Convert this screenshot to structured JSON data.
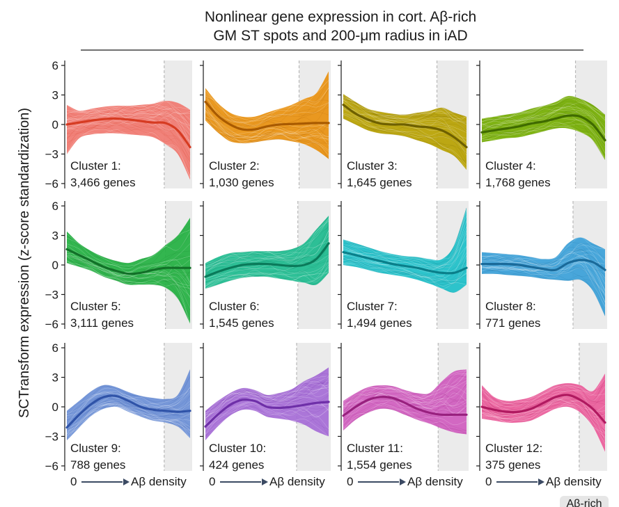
{
  "figure": {
    "title_line1": "Nonlinear gene expression in cort. Aβ-rich",
    "title_line2": "GM ST spots and 200-μm radius in iAD",
    "y_axis_label": "SCTransform expression (z-score standardization)",
    "x_axis_start": "0",
    "x_axis_end": "Aβ density",
    "shaded_region_label": "Aβ-rich"
  },
  "chart_data": {
    "type": "line",
    "x_label": "0 → Aβ density",
    "y_label": "SCTransform expression (z-score standardization)",
    "ylim": [
      -6.5,
      6.5
    ],
    "y_ticks": [
      6,
      3,
      0,
      -3,
      -6
    ],
    "y_tick_labels": [
      "6",
      "3",
      "0",
      "−3",
      "−6"
    ],
    "x": [
      0,
      0.1,
      0.2,
      0.3,
      0.4,
      0.5,
      0.6,
      0.7,
      0.8,
      0.9,
      1.0
    ],
    "panels": [
      {
        "name": "Cluster 1:",
        "genes": "3,466 genes",
        "color": "#f07870",
        "line_color": "#d63b22",
        "shade_start": 0.79,
        "mean": [
          0.0,
          0.2,
          0.4,
          0.55,
          0.6,
          0.5,
          0.35,
          0.2,
          0.15,
          -0.6,
          -2.3
        ],
        "upper": [
          2.0,
          1.4,
          1.6,
          1.8,
          1.9,
          1.9,
          2.0,
          2.1,
          2.4,
          2.2,
          1.5
        ],
        "lower": [
          -3.0,
          -1.4,
          -1.0,
          -0.9,
          -0.9,
          -1.0,
          -1.1,
          -1.3,
          -2.0,
          -3.0,
          -5.6
        ]
      },
      {
        "name": "Cluster 2:",
        "genes": "1,030 genes",
        "color": "#e8900e",
        "line_color": "#a85a00",
        "shade_start": 0.76,
        "mean": [
          2.3,
          0.9,
          0.0,
          -0.5,
          -0.5,
          -0.2,
          0.0,
          0.05,
          0.1,
          0.15,
          0.15
        ],
        "upper": [
          3.7,
          2.2,
          1.2,
          0.8,
          0.8,
          1.2,
          1.6,
          2.0,
          2.6,
          3.2,
          5.4
        ],
        "lower": [
          0.4,
          -0.8,
          -1.7,
          -1.9,
          -1.8,
          -1.6,
          -1.5,
          -1.7,
          -2.0,
          -2.6,
          -3.5
        ]
      },
      {
        "name": "Cluster 3:",
        "genes": "1,645 genes",
        "color": "#b7a100",
        "line_color": "#6e6000",
        "shade_start": 0.76,
        "mean": [
          2.0,
          1.1,
          0.5,
          0.1,
          0.0,
          0.0,
          -0.2,
          -0.3,
          -0.6,
          -1.3,
          -2.3
        ],
        "upper": [
          3.1,
          2.3,
          1.6,
          1.3,
          1.1,
          1.0,
          1.2,
          1.4,
          1.7,
          1.2,
          0.8
        ],
        "lower": [
          0.6,
          0.0,
          -0.6,
          -0.9,
          -1.0,
          -1.2,
          -1.6,
          -2.0,
          -2.6,
          -3.2,
          -4.6
        ]
      },
      {
        "name": "Cluster 4:",
        "genes": "1,768 genes",
        "color": "#74ad00",
        "line_color": "#3f6a00",
        "shade_start": 0.76,
        "mean": [
          -0.8,
          -0.6,
          -0.4,
          -0.2,
          0.1,
          0.3,
          0.6,
          0.9,
          0.8,
          0.0,
          -1.6
        ],
        "upper": [
          0.6,
          0.8,
          1.0,
          1.2,
          1.6,
          1.9,
          2.3,
          2.9,
          2.6,
          2.0,
          1.0
        ],
        "lower": [
          -1.8,
          -1.6,
          -1.4,
          -1.3,
          -1.0,
          -0.7,
          -0.4,
          -0.4,
          -0.8,
          -1.6,
          -3.6
        ]
      },
      {
        "name": "Cluster 5:",
        "genes": "3,111 genes",
        "color": "#22b040",
        "line_color": "#127028",
        "shade_start": 0.8,
        "mean": [
          1.6,
          1.0,
          0.4,
          -0.2,
          -0.6,
          -0.9,
          -0.8,
          -0.5,
          -0.3,
          -0.3,
          -0.3
        ],
        "upper": [
          3.4,
          2.2,
          1.4,
          0.8,
          0.4,
          0.2,
          0.6,
          1.0,
          2.0,
          3.0,
          4.8
        ],
        "lower": [
          0.2,
          -0.2,
          -0.6,
          -1.2,
          -1.6,
          -2.0,
          -2.0,
          -2.0,
          -2.3,
          -3.4,
          -6.0
        ]
      },
      {
        "name": "Cluster 6:",
        "genes": "1,545 genes",
        "color": "#1cbb8e",
        "line_color": "#0a7a5a",
        "shade_start": 0.75,
        "mean": [
          -1.2,
          -0.7,
          -0.3,
          0.0,
          0.1,
          0.1,
          0.0,
          -0.1,
          0.0,
          0.6,
          2.2
        ],
        "upper": [
          0.2,
          0.8,
          1.2,
          1.3,
          1.4,
          1.4,
          1.4,
          1.6,
          2.2,
          3.6,
          5.0
        ],
        "lower": [
          -2.4,
          -2.0,
          -1.6,
          -1.3,
          -1.2,
          -1.2,
          -1.4,
          -1.6,
          -1.8,
          -2.0,
          -0.8
        ]
      },
      {
        "name": "Cluster 7:",
        "genes": "1,494 genes",
        "color": "#1cbfc8",
        "line_color": "#0a7f8a",
        "shade_start": 0.76,
        "mean": [
          1.3,
          1.0,
          0.7,
          0.4,
          0.1,
          -0.1,
          -0.3,
          -0.6,
          -0.8,
          -0.8,
          -0.3
        ],
        "upper": [
          2.6,
          2.2,
          1.8,
          1.4,
          1.1,
          0.9,
          0.8,
          0.6,
          0.6,
          2.0,
          5.8
        ],
        "lower": [
          0.0,
          -0.2,
          -0.5,
          -0.8,
          -1.0,
          -1.2,
          -1.5,
          -1.9,
          -2.4,
          -2.8,
          -2.0
        ]
      },
      {
        "name": "Cluster 8:",
        "genes": "771 genes",
        "color": "#3aa0d8",
        "line_color": "#1a6a9a",
        "shade_start": 0.74,
        "mean": [
          0.1,
          0.1,
          0.1,
          0.0,
          -0.2,
          -0.4,
          -0.5,
          0.2,
          0.5,
          0.3,
          -0.5
        ],
        "upper": [
          1.3,
          1.2,
          1.1,
          1.0,
          0.8,
          0.6,
          0.8,
          2.2,
          2.8,
          2.2,
          1.6
        ],
        "lower": [
          -0.9,
          -0.9,
          -1.0,
          -1.1,
          -1.2,
          -1.4,
          -1.5,
          -1.6,
          -1.5,
          -2.6,
          -5.2
        ]
      },
      {
        "name": "Cluster 9:",
        "genes": "788 genes",
        "color": "#6b8fd6",
        "line_color": "#2f53a8",
        "shade_start": 0.79,
        "mean": [
          -2.1,
          -0.8,
          0.3,
          1.0,
          1.1,
          0.6,
          0.0,
          -0.3,
          -0.4,
          -0.5,
          -0.4
        ],
        "upper": [
          -0.4,
          0.6,
          1.6,
          2.2,
          2.0,
          1.5,
          1.1,
          0.9,
          0.8,
          1.2,
          3.8
        ],
        "lower": [
          -3.4,
          -2.1,
          -0.9,
          -0.2,
          0.0,
          -0.5,
          -1.0,
          -1.4,
          -1.6,
          -2.0,
          -3.2
        ]
      },
      {
        "name": "Cluster 10:",
        "genes": "424 genes",
        "color": "#a56bd6",
        "line_color": "#6e2fa8",
        "shade_start": 0.74,
        "mean": [
          -2.0,
          -0.8,
          0.2,
          0.7,
          0.6,
          0.0,
          -0.1,
          0.0,
          0.2,
          0.4,
          0.5
        ],
        "upper": [
          -0.4,
          0.6,
          1.4,
          1.9,
          1.7,
          1.2,
          1.4,
          1.8,
          2.6,
          3.2,
          4.0
        ],
        "lower": [
          -3.4,
          -2.0,
          -0.9,
          -0.3,
          -0.4,
          -1.0,
          -1.2,
          -1.4,
          -1.8,
          -2.5,
          -3.0
        ]
      },
      {
        "name": "Cluster 11:",
        "genes": "1,554 genes",
        "color": "#cf5cbe",
        "line_color": "#98207e",
        "shade_start": 0.77,
        "mean": [
          -0.9,
          0.0,
          0.7,
          1.0,
          0.9,
          0.4,
          -0.2,
          -0.6,
          -0.8,
          -0.8,
          -0.8
        ],
        "upper": [
          0.6,
          1.4,
          2.0,
          2.2,
          2.1,
          1.7,
          1.4,
          1.4,
          2.6,
          3.6,
          3.8
        ],
        "lower": [
          -2.4,
          -1.3,
          -0.6,
          -0.2,
          -0.3,
          -0.8,
          -1.3,
          -1.7,
          -2.2,
          -2.6,
          -2.8
        ]
      },
      {
        "name": "Cluster 12:",
        "genes": "375 genes",
        "color": "#ea5c9a",
        "line_color": "#b01a60",
        "shade_start": 0.79,
        "mean": [
          0.0,
          -0.3,
          -0.5,
          -0.5,
          -0.2,
          0.4,
          1.0,
          1.2,
          0.7,
          -0.2,
          -1.6
        ],
        "upper": [
          2.2,
          1.0,
          0.6,
          0.7,
          1.0,
          1.6,
          2.2,
          2.4,
          2.2,
          1.6,
          3.4
        ],
        "lower": [
          -1.2,
          -1.4,
          -1.6,
          -1.6,
          -1.4,
          -0.8,
          -0.2,
          0.0,
          -0.6,
          -2.0,
          -4.6
        ]
      }
    ]
  }
}
